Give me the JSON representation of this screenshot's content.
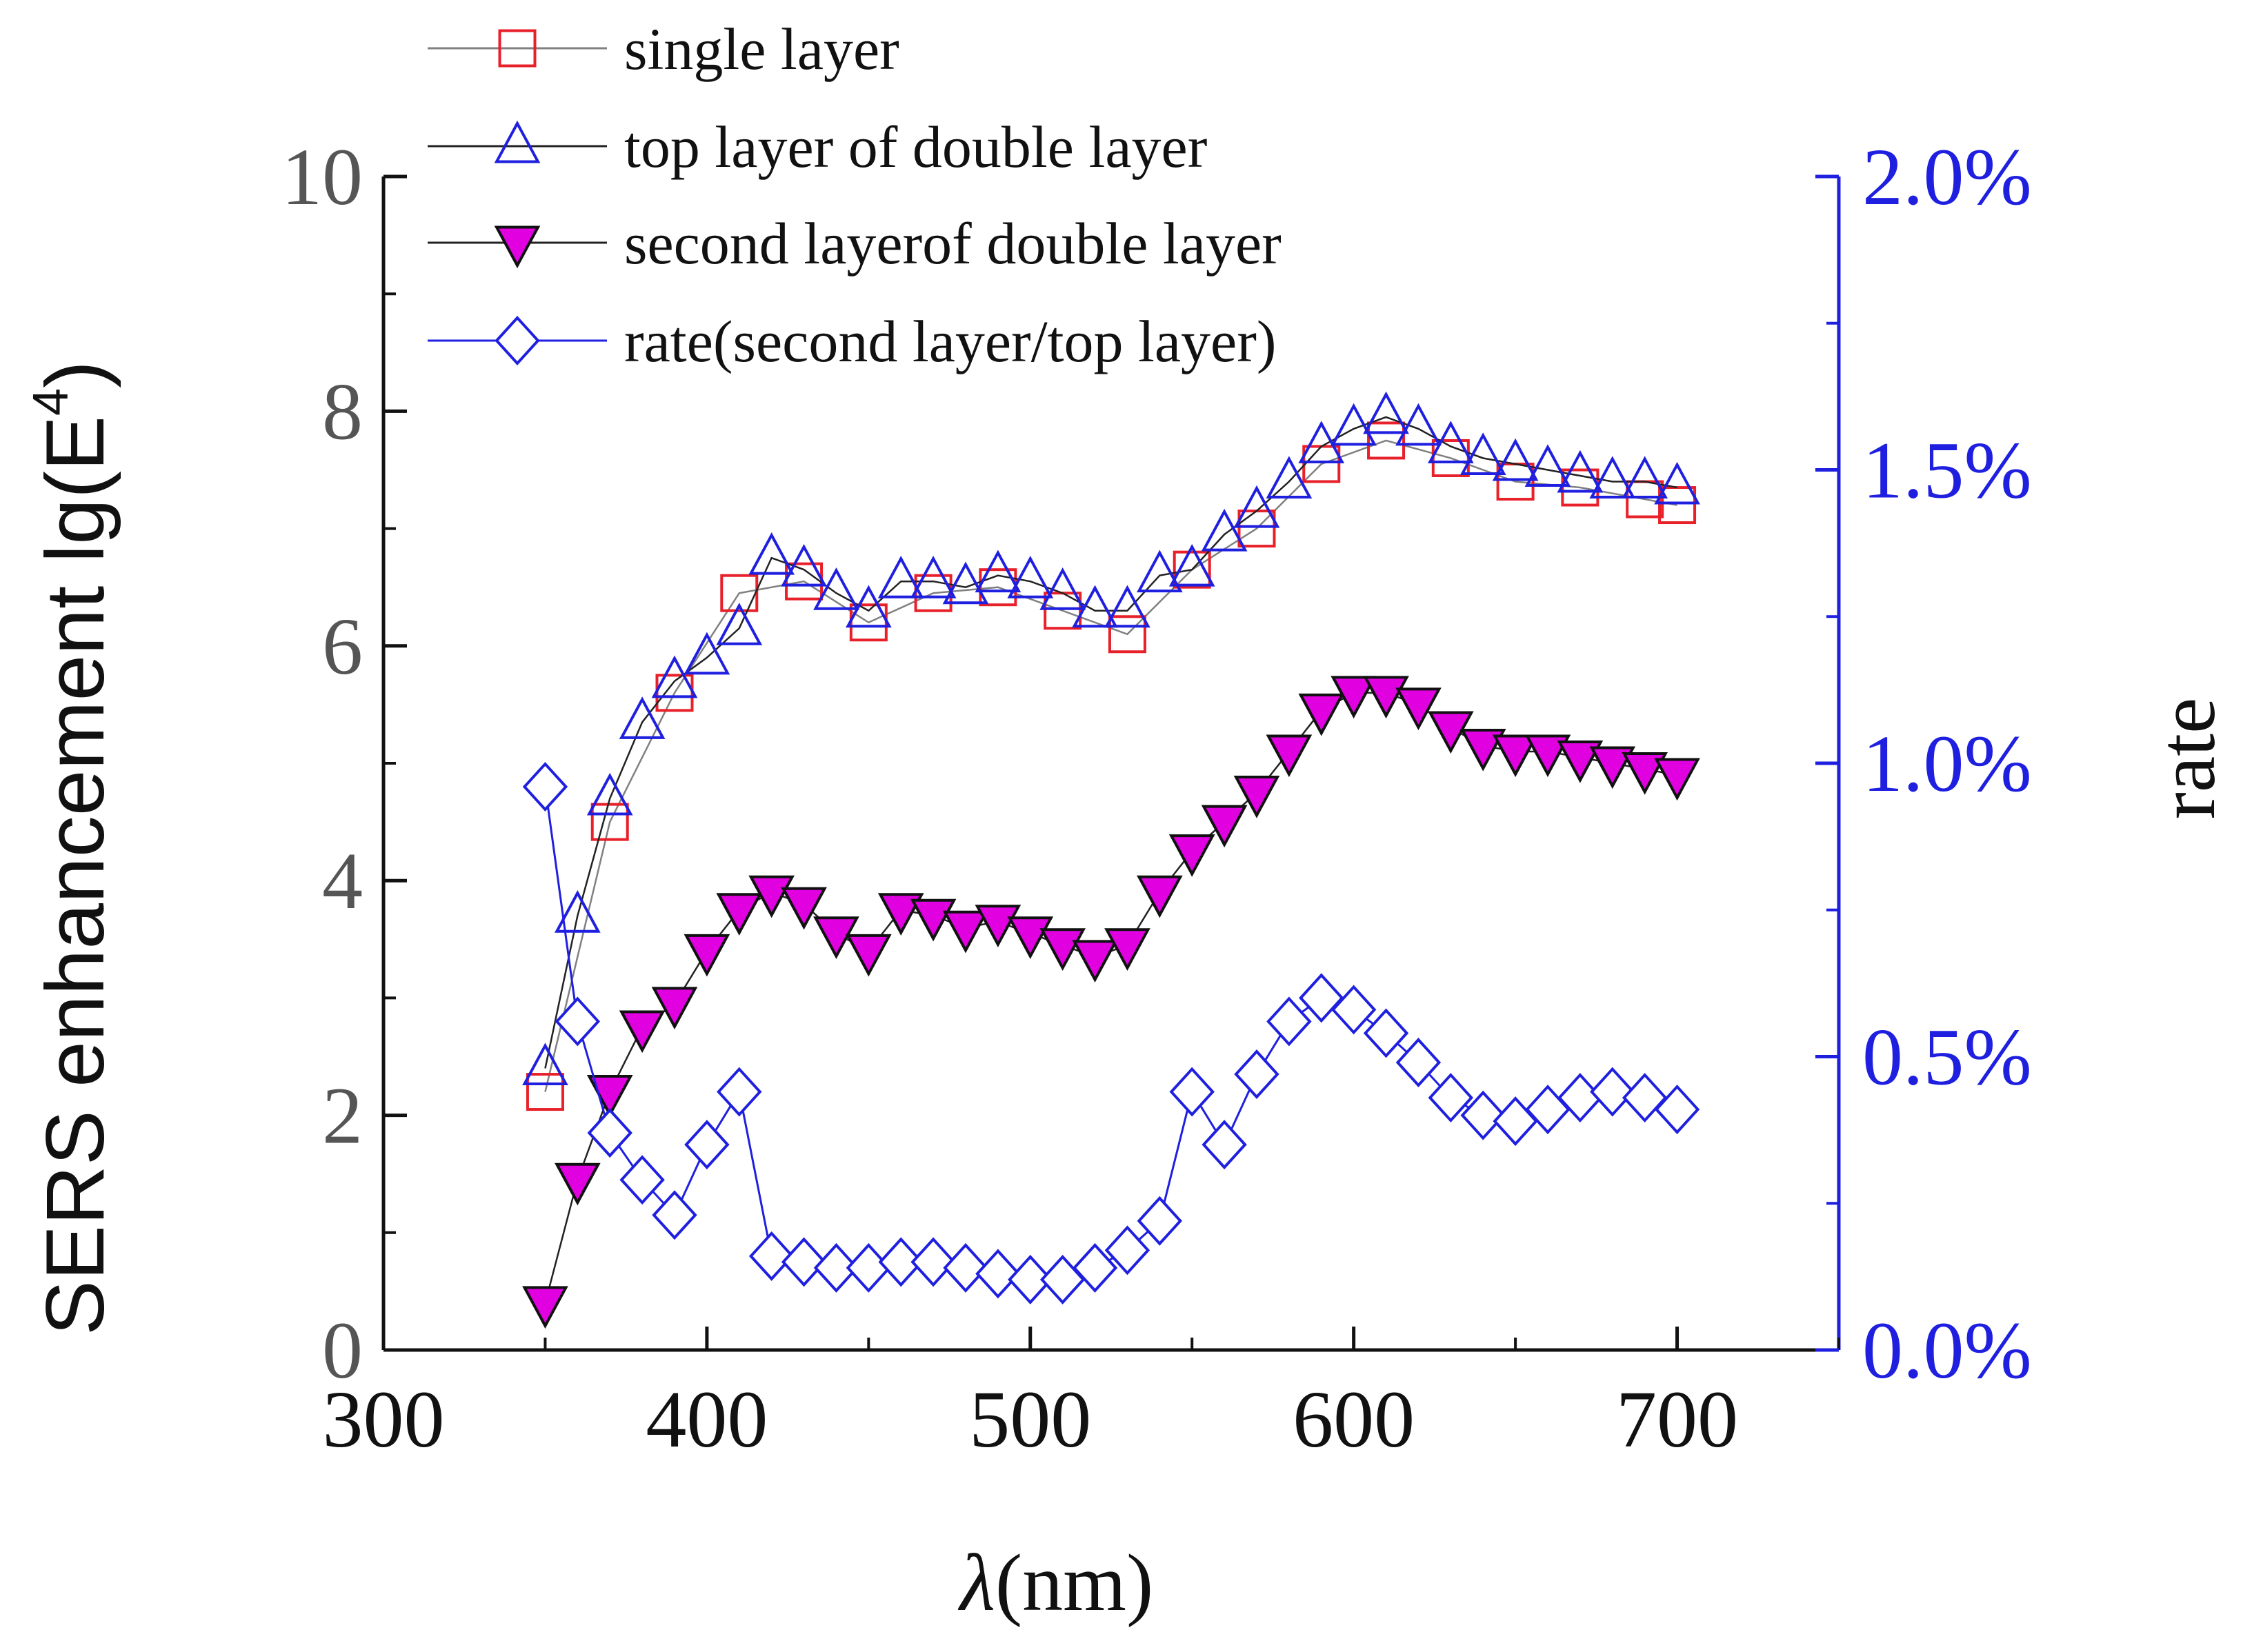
{
  "chart_data": {
    "type": "line",
    "xlabel_symbol": "λ",
    "xlabel_unit": "(nm)",
    "ylabel_text": "SERS enhancement lg(E",
    "ylabel_sup": "4",
    "ylabel_close": ")",
    "y2label": "rate",
    "xlim": [
      300,
      750
    ],
    "ylim": [
      0,
      10
    ],
    "y2lim": [
      0,
      0.02
    ],
    "x_ticks": [
      300,
      400,
      500,
      600,
      700
    ],
    "y_ticks": [
      0,
      2,
      4,
      6,
      8,
      10
    ],
    "y2_ticks": [
      "0.0%",
      "0.5%",
      "1.0%",
      "1.5%",
      "2.0%"
    ],
    "x": [
      350,
      360,
      370,
      380,
      390,
      400,
      410,
      420,
      430,
      440,
      450,
      460,
      470,
      480,
      490,
      500,
      510,
      520,
      530,
      540,
      550,
      560,
      570,
      580,
      590,
      600,
      610,
      620,
      630,
      640,
      650,
      660,
      670,
      680,
      690,
      700
    ],
    "series": [
      {
        "name": "single layer",
        "axis": "left",
        "marker": "square",
        "line_color": "#808080",
        "marker_color": "#e8202a",
        "x": [
          350,
          370,
          390,
          410,
          430,
          450,
          470,
          490,
          510,
          530,
          550,
          570,
          590,
          610,
          630,
          650,
          670,
          690,
          700
        ],
        "values": [
          2.2,
          4.5,
          5.6,
          6.45,
          6.55,
          6.2,
          6.45,
          6.5,
          6.3,
          6.1,
          6.65,
          7.0,
          7.55,
          7.75,
          7.6,
          7.4,
          7.35,
          7.25,
          7.2
        ]
      },
      {
        "name": "top layer of double layer",
        "axis": "left",
        "marker": "triangle-up",
        "line_color": "#222222",
        "marker_color": "#1f1fe0",
        "values": [
          2.4,
          3.7,
          4.7,
          5.35,
          5.7,
          5.9,
          6.15,
          6.75,
          6.65,
          6.45,
          6.3,
          6.55,
          6.55,
          6.5,
          6.6,
          6.55,
          6.45,
          6.3,
          6.3,
          6.6,
          6.65,
          6.95,
          7.15,
          7.4,
          7.7,
          7.85,
          7.95,
          7.85,
          7.7,
          7.6,
          7.55,
          7.5,
          7.45,
          7.4,
          7.4,
          7.35
        ]
      },
      {
        "name": "second layerof double layer",
        "axis": "left",
        "marker": "triangle-down-filled",
        "line_color": "#222222",
        "marker_color": "#e000e0",
        "values": [
          0.4,
          1.45,
          2.2,
          2.75,
          2.95,
          3.4,
          3.75,
          3.9,
          3.8,
          3.55,
          3.4,
          3.75,
          3.7,
          3.6,
          3.65,
          3.55,
          3.45,
          3.35,
          3.45,
          3.9,
          4.25,
          4.5,
          4.75,
          5.1,
          5.45,
          5.6,
          5.6,
          5.5,
          5.3,
          5.15,
          5.1,
          5.1,
          5.05,
          5.0,
          4.95,
          4.9
        ]
      },
      {
        "name": "rate(second layer/top layer)",
        "axis": "right",
        "marker": "diamond",
        "line_color": "#1f1fe0",
        "marker_color": "#1f1fe0",
        "values": [
          0.0096,
          0.0056,
          0.0037,
          0.0029,
          0.0023,
          0.0035,
          0.0044,
          0.0016,
          0.0015,
          0.0014,
          0.0014,
          0.0015,
          0.0015,
          0.0014,
          0.0013,
          0.0012,
          0.0012,
          0.0014,
          0.0017,
          0.0022,
          0.0044,
          0.0035,
          0.0047,
          0.0056,
          0.006,
          0.0058,
          0.0054,
          0.0049,
          0.0043,
          0.004,
          0.0039,
          0.0041,
          0.0043,
          0.0044,
          0.0043,
          0.0041
        ]
      }
    ]
  }
}
